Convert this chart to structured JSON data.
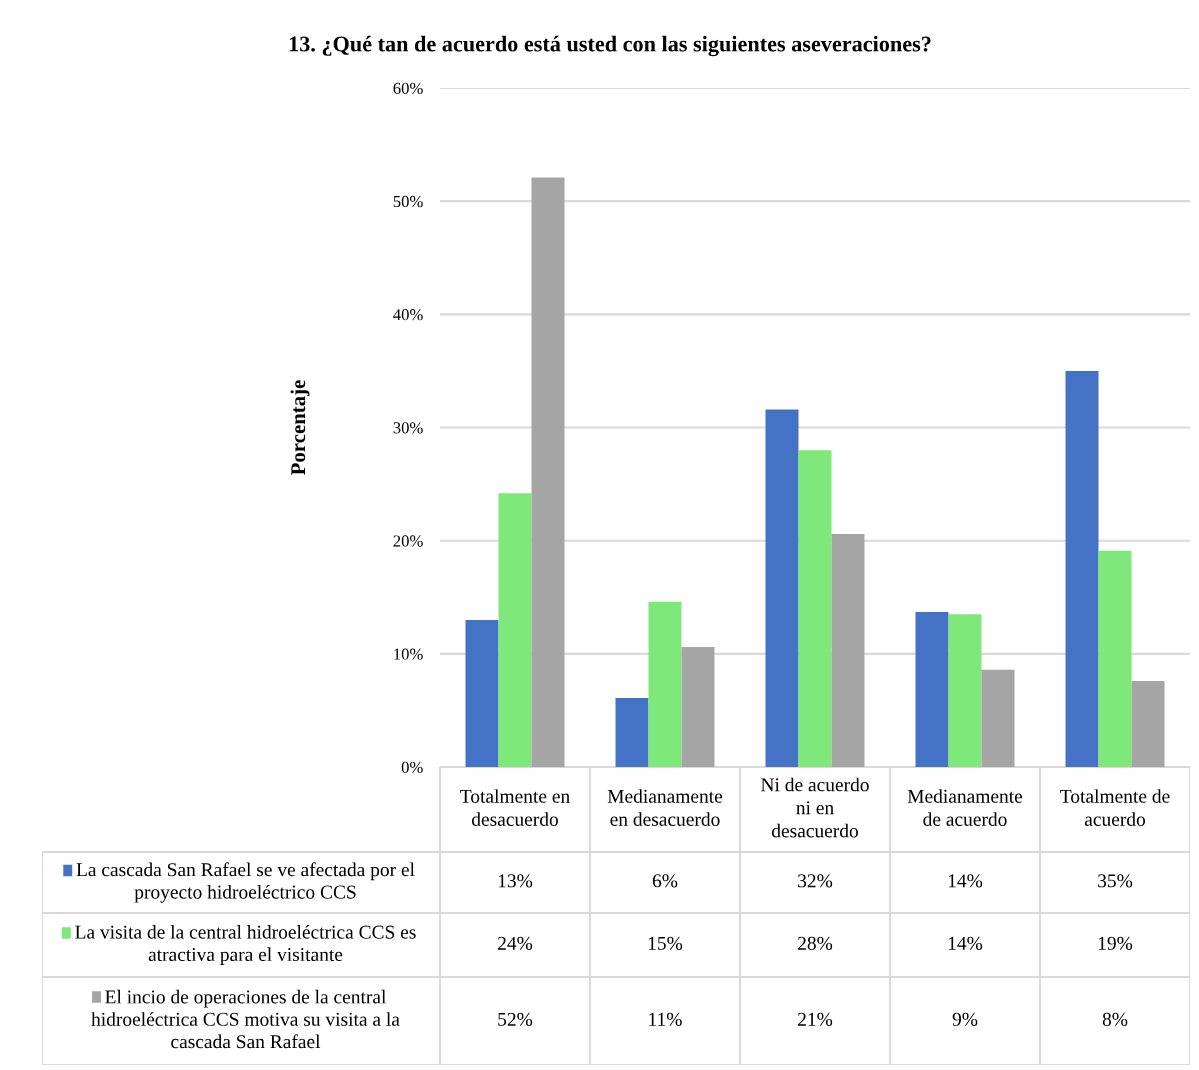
{
  "chart_data": {
    "type": "bar",
    "title": "13. ¿Qué tan de acuerdo está usted con las siguientes aseveraciones?",
    "ylabel": "Porcentaje",
    "categories": [
      "Totalmente en\ndesacuerdo",
      "Medianamente\nen desacuerdo",
      "Ni de acuerdo\nni en\ndesacuerdo",
      "Medianamente\nde acuerdo",
      "Totalmente de\nacuerdo"
    ],
    "series": [
      {
        "name": "La cascada San Rafael se ve afectada por el\nproyecto hidroeléctrico CCS",
        "color": "#4472c4",
        "values": [
          13.0,
          6.1,
          31.6,
          13.7,
          35.0
        ],
        "value_labels": [
          "13%",
          "6%",
          "32%",
          "14%",
          "35%"
        ]
      },
      {
        "name": "La visita de la central hidroeléctrica CCS es\natractiva para el visitante",
        "color": "#7ee87a",
        "values": [
          24.2,
          14.6,
          28.0,
          13.5,
          19.1
        ],
        "value_labels": [
          "24%",
          "15%",
          "28%",
          "14%",
          "19%"
        ]
      },
      {
        "name": "El incio de operaciones de la central\nhidroeléctrica CCS motiva su visita a la\ncascada San Rafael",
        "color": "#a5a5a5",
        "values": [
          52.1,
          10.6,
          20.6,
          8.6,
          7.6
        ],
        "value_labels": [
          "52%",
          "11%",
          "21%",
          "9%",
          "8%"
        ]
      }
    ],
    "ylim": [
      0,
      60
    ],
    "yticks": [
      {
        "value": 0,
        "label": "0%"
      },
      {
        "value": 10,
        "label": "10%"
      },
      {
        "value": 20,
        "label": "20%"
      },
      {
        "value": 30,
        "label": "30%"
      },
      {
        "value": 40,
        "label": "40%"
      },
      {
        "value": 50,
        "label": "50%"
      },
      {
        "value": 60,
        "label": "60%"
      }
    ],
    "grid": "y",
    "legend": "bottom left"
  }
}
